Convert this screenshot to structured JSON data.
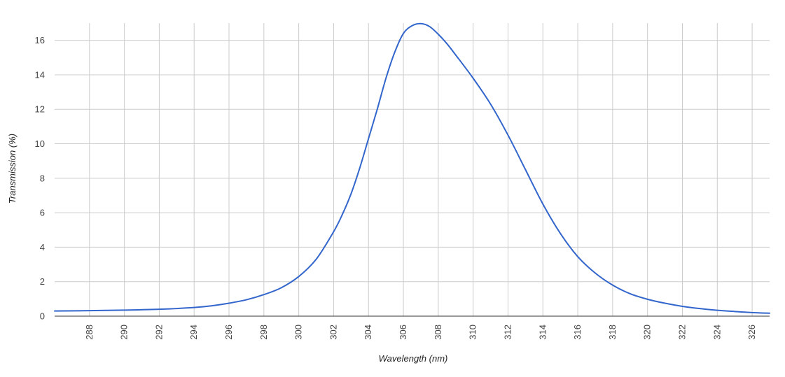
{
  "chart_data": {
    "type": "line",
    "title": "",
    "xlabel": "Wavelength (nm)",
    "ylabel": "Transmission (%)",
    "xlim": [
      286,
      327
    ],
    "ylim": [
      0,
      17
    ],
    "x_ticks": [
      288,
      290,
      292,
      294,
      296,
      298,
      300,
      302,
      304,
      306,
      308,
      310,
      312,
      314,
      316,
      318,
      320,
      322,
      324,
      326
    ],
    "y_ticks": [
      0,
      2,
      4,
      6,
      8,
      10,
      12,
      14,
      16
    ],
    "grid": true,
    "legend": "none",
    "series": [
      {
        "color": "#3366cc",
        "x": [
          286,
          288,
          290,
          292,
          294,
          295,
          296,
          297,
          298,
          299,
          300,
          301,
          302,
          302.5,
          303,
          303.5,
          304,
          304.5,
          305,
          305.5,
          306,
          306.5,
          307,
          307.5,
          308,
          308.5,
          309,
          310,
          311,
          312,
          313,
          314,
          315,
          316,
          317,
          318,
          319,
          320,
          321,
          322,
          323,
          324,
          325,
          326,
          327
        ],
        "y": [
          0.3,
          0.32,
          0.35,
          0.4,
          0.5,
          0.6,
          0.75,
          0.95,
          1.25,
          1.65,
          2.3,
          3.3,
          4.9,
          5.9,
          7.1,
          8.6,
          10.3,
          12.0,
          13.8,
          15.3,
          16.4,
          16.85,
          16.97,
          16.8,
          16.35,
          15.8,
          15.15,
          13.8,
          12.3,
          10.5,
          8.5,
          6.5,
          4.8,
          3.45,
          2.5,
          1.8,
          1.3,
          0.98,
          0.75,
          0.57,
          0.44,
          0.34,
          0.27,
          0.21,
          0.17
        ]
      }
    ]
  }
}
